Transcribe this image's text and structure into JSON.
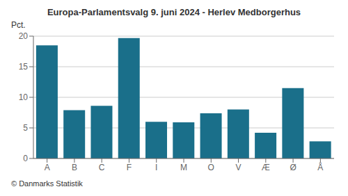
{
  "chart_data": {
    "type": "bar",
    "title": "Europa-Parlamentsvalg 9. juni 2024 - Herlev Medborgerhus",
    "ylabel": "Pct.",
    "footer": "© Danmarks Statistik",
    "categories": [
      "A",
      "B",
      "C",
      "F",
      "I",
      "M",
      "O",
      "V",
      "Æ",
      "Ø",
      "Å"
    ],
    "values": [
      18.5,
      7.9,
      8.6,
      19.7,
      6.0,
      5.9,
      7.4,
      8.0,
      4.2,
      11.5,
      2.8
    ],
    "color": "#1a6f8a",
    "ylim": [
      0,
      20
    ],
    "yticks": [
      0,
      5,
      10,
      15,
      20
    ],
    "grid": true
  }
}
